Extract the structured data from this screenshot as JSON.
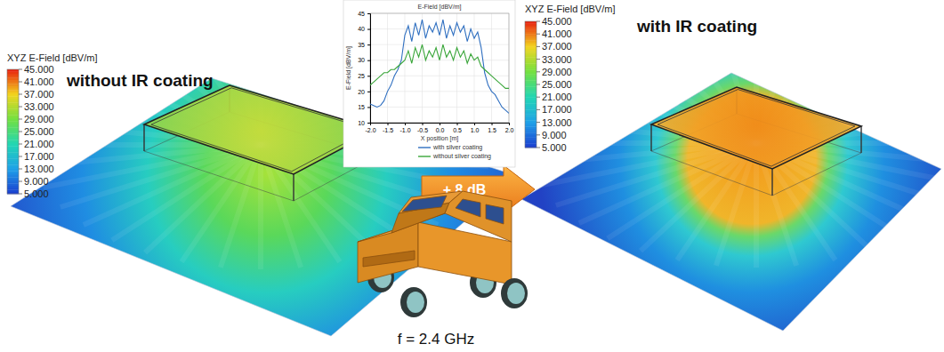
{
  "chart_data": {
    "type": "line",
    "title": "E-Field [dBV/m]",
    "x_label": "X position [m]",
    "y_label": "E-Field [dBV/m]",
    "x": [
      -2.0,
      -1.9,
      -1.8,
      -1.7,
      -1.6,
      -1.5,
      -1.4,
      -1.3,
      -1.2,
      -1.1,
      -1.0,
      -0.9,
      -0.8,
      -0.7,
      -0.6,
      -0.5,
      -0.4,
      -0.3,
      -0.2,
      -0.1,
      0.0,
      0.1,
      0.2,
      0.3,
      0.4,
      0.5,
      0.6,
      0.7,
      0.8,
      0.9,
      1.0,
      1.1,
      1.2,
      1.3,
      1.4,
      1.5,
      1.6,
      1.7,
      1.8,
      1.9,
      2.0
    ],
    "series": [
      {
        "name": "with silver coating",
        "color": "#2f6fc0",
        "values": [
          16,
          15.5,
          15,
          15.5,
          17,
          20,
          22,
          25,
          27,
          30,
          38,
          41,
          36,
          42,
          38,
          43,
          37,
          41,
          39,
          42,
          38,
          43,
          37,
          41,
          38,
          42,
          39,
          41,
          36,
          40,
          37,
          39,
          34,
          26,
          22,
          20,
          19,
          17,
          15,
          14,
          13
        ]
      },
      {
        "name": "without silver coating",
        "color": "#3aa63a",
        "values": [
          22,
          23,
          24,
          25,
          26,
          26,
          27,
          27,
          28,
          29,
          30,
          33,
          29,
          34,
          31,
          35,
          30,
          33,
          31,
          34,
          30,
          35,
          31,
          33,
          30,
          34,
          31,
          33,
          29,
          32,
          30,
          31,
          28,
          27,
          26,
          25,
          24,
          23,
          22,
          21,
          21
        ]
      }
    ],
    "xlim": [
      -2,
      2
    ],
    "xticks": [
      {
        "value": -2,
        "label": "-2.0"
      },
      {
        "value": -1.5,
        "label": "-1.5"
      },
      {
        "value": -1,
        "label": "-1.0"
      },
      {
        "value": -0.5,
        "label": "-0.5"
      },
      {
        "value": 0,
        "label": "0.0"
      },
      {
        "value": 0.5,
        "label": "0.5"
      },
      {
        "value": 1,
        "label": "1.0"
      },
      {
        "value": 1.5,
        "label": "1.5"
      },
      {
        "value": 2,
        "label": "2.0"
      }
    ],
    "ylim": [
      10,
      45
    ],
    "yticks": [
      10,
      15,
      20,
      25,
      30,
      35,
      40,
      45
    ],
    "grid": true,
    "legend": "bottom"
  },
  "panels": [
    {
      "title": "without IR coating",
      "colorbar": {
        "title": "XYZ E-Field [dBV/m]",
        "range": [
          5,
          45
        ],
        "ticks": [
          {
            "value": 45,
            "label": "45.000"
          },
          {
            "value": 41,
            "label": "41.000"
          },
          {
            "value": 37,
            "label": "37.000"
          },
          {
            "value": 33,
            "label": "33.000"
          },
          {
            "value": 29,
            "label": "29.000"
          },
          {
            "value": 25,
            "label": "25.000"
          },
          {
            "value": 21,
            "label": "21.000"
          },
          {
            "value": 17,
            "label": "17.000"
          },
          {
            "value": 13,
            "label": "13.000"
          },
          {
            "value": 9,
            "label": "9.000"
          },
          {
            "value": 5,
            "label": "5.000"
          }
        ]
      }
    },
    {
      "title": "with IR coating",
      "colorbar": {
        "title": "XYZ E-Field [dBV/m]",
        "range": [
          5,
          45
        ],
        "ticks": [
          {
            "value": 45,
            "label": "45.000"
          },
          {
            "value": 41,
            "label": "41.000"
          },
          {
            "value": 37,
            "label": "37.000"
          },
          {
            "value": 33,
            "label": "33.000"
          },
          {
            "value": 29,
            "label": "29.000"
          },
          {
            "value": 25,
            "label": "25.000"
          },
          {
            "value": 21,
            "label": "21.000"
          },
          {
            "value": 17,
            "label": "17.000"
          },
          {
            "value": 13,
            "label": "13.000"
          },
          {
            "value": 9,
            "label": "9.000"
          },
          {
            "value": 5,
            "label": "5.000"
          }
        ]
      }
    }
  ],
  "arrow_label": "+ 8 dB",
  "frequency_label": "f = 2.4 GHz"
}
